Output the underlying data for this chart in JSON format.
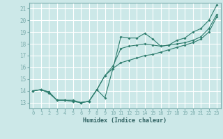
{
  "xlabel": "Humidex (Indice chaleur)",
  "bg_color": "#cce8e8",
  "grid_color": "#ffffff",
  "line_color": "#2e7d6e",
  "xlim": [
    -0.5,
    23.5
  ],
  "ylim": [
    12.5,
    21.5
  ],
  "xticks": [
    0,
    1,
    2,
    3,
    4,
    5,
    6,
    7,
    8,
    9,
    10,
    11,
    12,
    13,
    14,
    15,
    16,
    17,
    18,
    19,
    20,
    21,
    22,
    23
  ],
  "yticks": [
    13,
    14,
    15,
    16,
    17,
    18,
    19,
    20,
    21
  ],
  "line1_x": [
    0,
    1,
    2,
    3,
    4,
    5,
    6,
    7,
    8,
    9,
    10,
    11,
    12,
    13,
    14,
    15,
    16,
    17,
    18,
    19,
    20,
    21,
    22,
    23
  ],
  "line1_y": [
    14.0,
    14.1,
    13.8,
    13.2,
    13.2,
    13.1,
    13.0,
    13.1,
    14.1,
    13.4,
    15.9,
    18.6,
    18.5,
    18.5,
    18.9,
    18.4,
    17.8,
    17.9,
    18.3,
    18.5,
    19.0,
    19.3,
    20.0,
    21.3
  ],
  "line2_x": [
    0,
    1,
    2,
    3,
    4,
    5,
    6,
    7,
    8,
    9,
    10,
    11,
    12,
    13,
    14,
    15,
    16,
    17,
    18,
    19,
    20,
    21,
    22,
    23
  ],
  "line2_y": [
    14.0,
    14.1,
    13.9,
    13.2,
    13.2,
    13.1,
    13.0,
    13.1,
    14.1,
    15.3,
    16.1,
    17.6,
    17.8,
    17.9,
    18.0,
    17.9,
    17.8,
    17.9,
    18.0,
    18.1,
    18.3,
    18.6,
    19.3,
    20.5
  ],
  "line3_x": [
    0,
    1,
    2,
    3,
    4,
    5,
    6,
    7,
    8,
    9,
    10,
    11,
    12,
    13,
    14,
    15,
    16,
    17,
    18,
    19,
    20,
    21,
    22,
    23
  ],
  "line3_y": [
    14.0,
    14.1,
    13.9,
    13.2,
    13.2,
    13.2,
    13.0,
    13.1,
    14.1,
    15.3,
    15.9,
    16.4,
    16.6,
    16.8,
    17.0,
    17.1,
    17.3,
    17.5,
    17.7,
    17.9,
    18.1,
    18.4,
    19.0,
    20.3
  ]
}
